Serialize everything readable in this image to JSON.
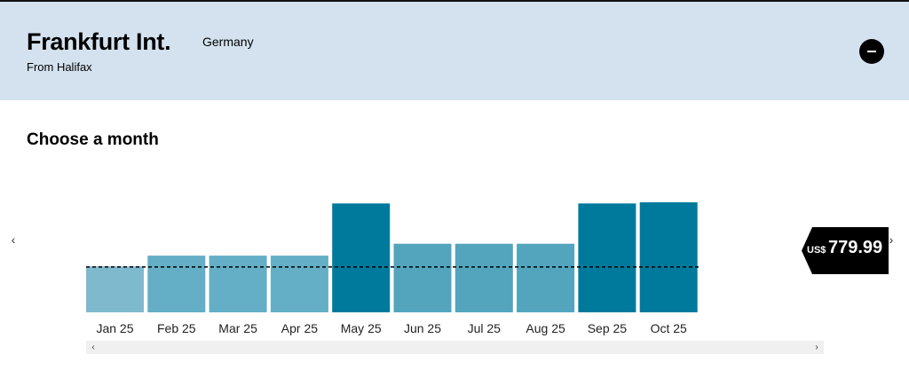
{
  "header": {
    "title": "Frankfurt Int.",
    "country": "Germany",
    "origin": "From Halifax",
    "collapse_icon": "minus-icon"
  },
  "section_title": "Choose a month",
  "price_tag": {
    "currency": "US$",
    "amount": "779.99"
  },
  "navigation": {
    "prev_icon": "chevron-left-icon",
    "next_icon": "chevron-right-icon"
  },
  "scrollbar": {
    "left_arrow": "‹",
    "right_arrow": "›"
  },
  "colors": {
    "header_bg": "#d4e2ef",
    "bar_light": "#7fb9cd",
    "bar_mid_light": "#64aec6",
    "bar_mid": "#52a5bd",
    "bar_dark": "#007a9c",
    "reference_line": "#000000"
  },
  "chart_data": {
    "type": "bar",
    "categories": [
      "Jan 25",
      "Feb 25",
      "Mar 25",
      "Apr 25",
      "May 25",
      "Jun 25",
      "Jul 25",
      "Aug 25",
      "Sep 25",
      "Oct 25"
    ],
    "values": [
      405,
      500,
      500,
      500,
      960,
      605,
      605,
      605,
      960,
      970
    ],
    "bar_colors": [
      "#7fb9cd",
      "#64aec6",
      "#64aec6",
      "#64aec6",
      "#007a9c",
      "#52a5bd",
      "#52a5bd",
      "#52a5bd",
      "#007a9c",
      "#007a9c"
    ],
    "reference_value": 400,
    "reference_style": "dashed",
    "ylim": [
      0,
      970
    ],
    "xlabel": "",
    "ylabel": "",
    "grid": false
  }
}
